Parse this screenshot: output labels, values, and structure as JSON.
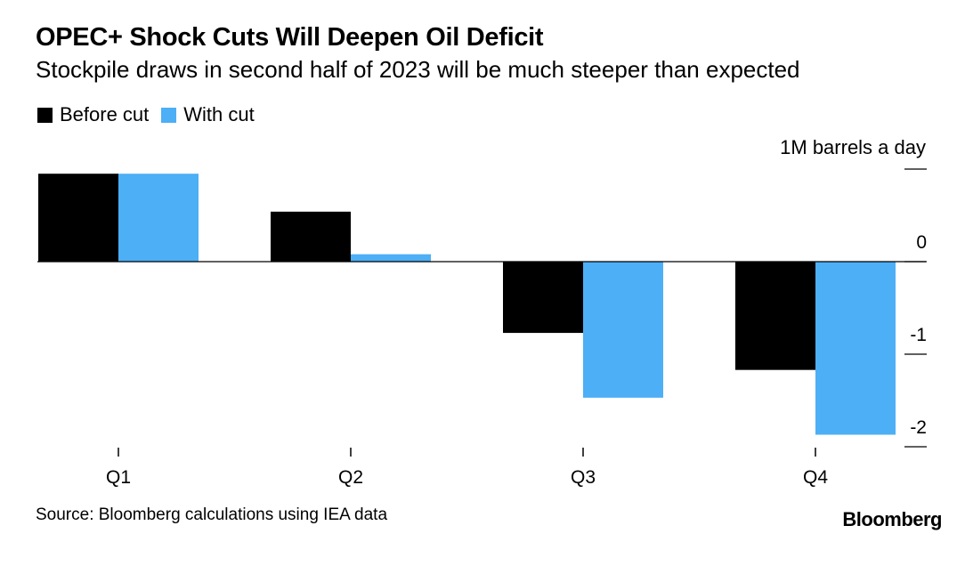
{
  "title": "OPEC+ Shock Cuts Will Deepen Oil Deficit",
  "subtitle": "Stockpile draws in second half of 2023 will be much steeper than expected",
  "unit_label": "1M barrels a day",
  "source": "Source: Bloomberg calculations using IEA data",
  "logo": "Bloomberg",
  "colors": {
    "before_cut": "#000000",
    "with_cut": "#4DAFF5",
    "axis": "#000000"
  },
  "chart_data": {
    "type": "bar",
    "categories": [
      "Q1",
      "Q2",
      "Q3",
      "Q4"
    ],
    "series": [
      {
        "name": "Before cut",
        "values": [
          0.95,
          0.54,
          -0.77,
          -1.17
        ]
      },
      {
        "name": "With cut",
        "values": [
          0.95,
          0.08,
          -1.47,
          -1.87
        ]
      }
    ],
    "yticks": [
      {
        "value": 0,
        "label": "0"
      },
      {
        "value": -1,
        "label": "-1"
      },
      {
        "value": -2,
        "label": "-2"
      }
    ],
    "ylim": [
      -2.0,
      1.0
    ],
    "legend_position": "top-left",
    "grid": false
  }
}
